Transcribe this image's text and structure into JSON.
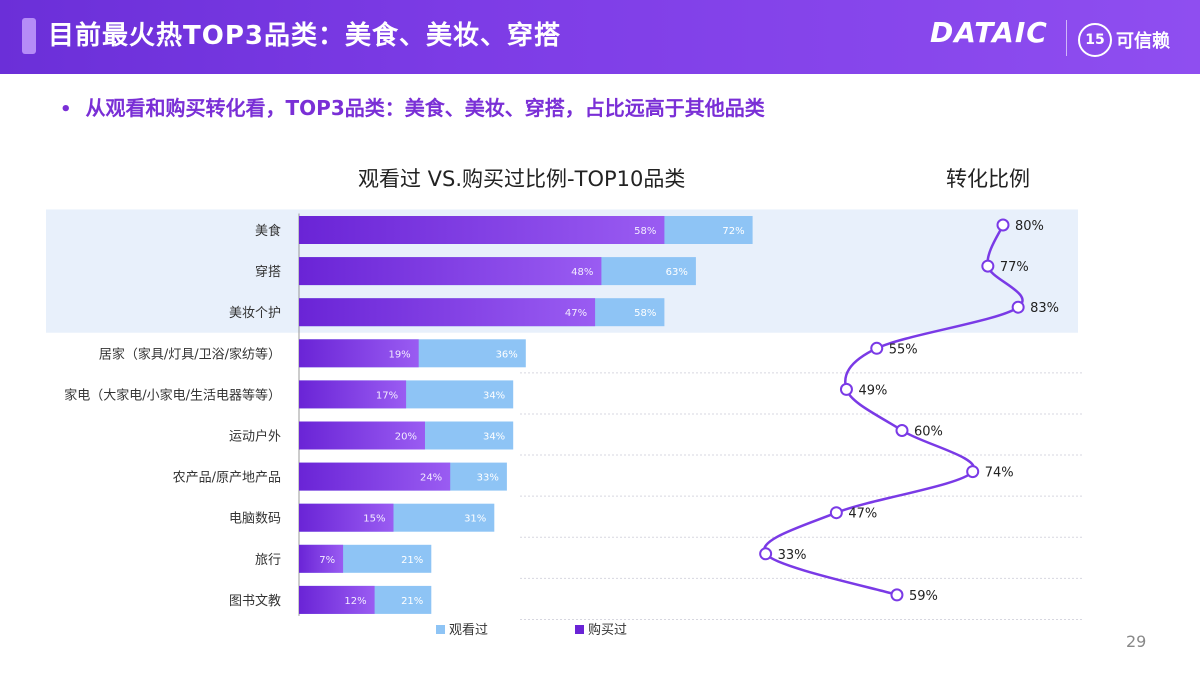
{
  "header": {
    "title": "目前最火热TOP3品类：美食、美妆、穿搭",
    "logo_text": "DATAIC",
    "partner_num": "15",
    "partner_name": "可信赖"
  },
  "subtitle": "从观看和购买转化看，TOP3品类：美食、美妆、穿搭，占比远高于其他品类",
  "page_number": "29",
  "colors": {
    "header": "#7434e0",
    "bought": "#7430e0",
    "viewed": "#8ec4f5",
    "line": "#7a3ae6",
    "highlight": "#e8f0fb"
  },
  "chart_data": [
    {
      "type": "bar",
      "title": "观看过 VS.购买过比例-TOP10品类",
      "orientation": "horizontal",
      "categories": [
        "美食",
        "穿搭",
        "美妆个护",
        "居家（家具/灯具/卫浴/家纺等）",
        "家电（大家电/小家电/生活电器等等）",
        "运动户外",
        "农产品/原产地产品",
        "电脑数码",
        "旅行",
        "图书文教"
      ],
      "series": [
        {
          "name": "购买过",
          "values": [
            58,
            48,
            47,
            19,
            17,
            20,
            24,
            15,
            7,
            12
          ],
          "labels": [
            "58%",
            "48%",
            "47%",
            "19%",
            "17%",
            "20%",
            "24%",
            "15%",
            "7%",
            "12%"
          ]
        },
        {
          "name": "观看过",
          "values": [
            72,
            63,
            58,
            36,
            34,
            34,
            33,
            31,
            21,
            21
          ],
          "labels": [
            "72%",
            "63%",
            "58%",
            "36%",
            "34%",
            "34%",
            "33%",
            "31%",
            "21%",
            "21%"
          ]
        }
      ],
      "legend": [
        "观看过",
        "购买过"
      ],
      "legend_position": "bottom",
      "highlighted_categories": 3
    },
    {
      "type": "line",
      "title": "转化比例",
      "orientation": "vertical",
      "values": [
        80,
        77,
        83,
        55,
        49,
        60,
        74,
        47,
        33,
        59
      ],
      "labels": [
        "80%",
        "77%",
        "83%",
        "55%",
        "49%",
        "60%",
        "74%",
        "47%",
        "33%",
        "59%"
      ]
    }
  ]
}
